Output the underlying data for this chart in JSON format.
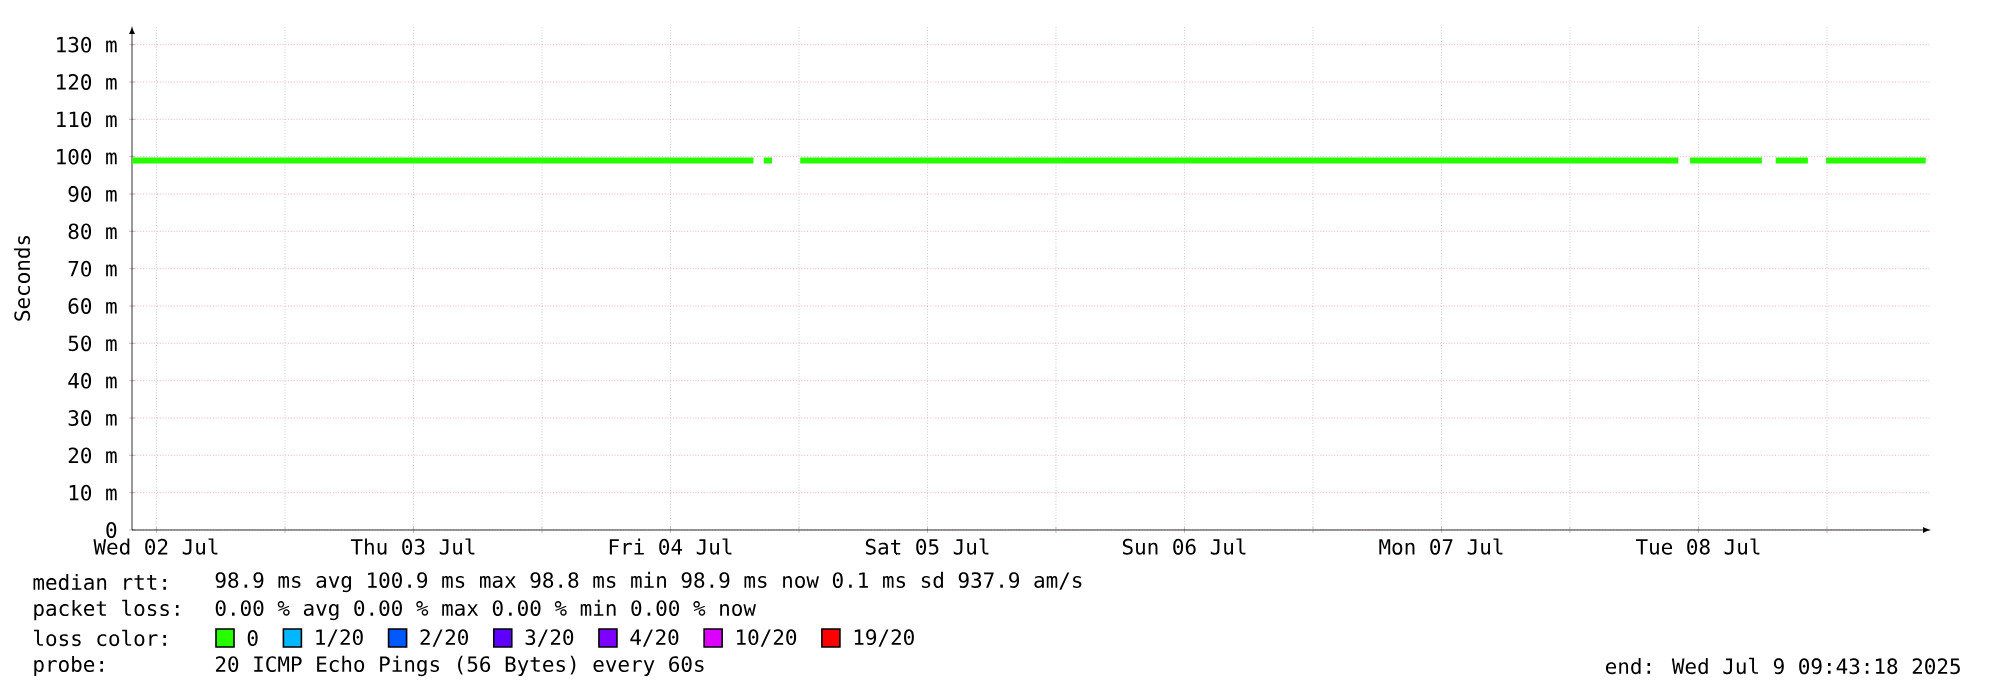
{
  "chart_data": {
    "type": "line",
    "ylabel": "Seconds",
    "legend_title": "loss color:",
    "legend": "bottom",
    "grid": true,
    "xlim": [
      "2025-07-02T09:43",
      "2025-07-09T09:43"
    ],
    "xticks": [
      {
        "value": "2025-07-02T12:00",
        "label": "Wed 02 Jul"
      },
      {
        "value": "2025-07-03T00:00",
        "label": null
      },
      {
        "value": "2025-07-03T12:00",
        "label": "Thu 03 Jul"
      },
      {
        "value": "2025-07-04T00:00",
        "label": null
      },
      {
        "value": "2025-07-04T12:00",
        "label": "Fri 04 Jul"
      },
      {
        "value": "2025-07-05T00:00",
        "label": null
      },
      {
        "value": "2025-07-05T12:00",
        "label": "Sat 05 Jul"
      },
      {
        "value": "2025-07-06T00:00",
        "label": null
      },
      {
        "value": "2025-07-06T12:00",
        "label": "Sun 06 Jul"
      },
      {
        "value": "2025-07-07T00:00",
        "label": null
      },
      {
        "value": "2025-07-07T12:00",
        "label": "Mon 07 Jul"
      },
      {
        "value": "2025-07-08T00:00",
        "label": null
      },
      {
        "value": "2025-07-08T12:00",
        "label": "Tue 08 Jul"
      },
      {
        "value": "2025-07-09T00:00",
        "label": null
      }
    ],
    "ylim": [
      0,
      135
    ],
    "yticks": [
      {
        "value": 0,
        "label": "0"
      },
      {
        "value": 10,
        "label": "10 m"
      },
      {
        "value": 20,
        "label": "20 m"
      },
      {
        "value": 30,
        "label": "30 m"
      },
      {
        "value": 40,
        "label": "40 m"
      },
      {
        "value": 50,
        "label": "50 m"
      },
      {
        "value": 60,
        "label": "60 m"
      },
      {
        "value": 70,
        "label": "70 m"
      },
      {
        "value": 80,
        "label": "80 m"
      },
      {
        "value": 90,
        "label": "90 m"
      },
      {
        "value": 100,
        "label": "100 m"
      },
      {
        "value": 110,
        "label": "110 m"
      },
      {
        "value": 120,
        "label": "120 m"
      },
      {
        "value": 130,
        "label": "130 m"
      }
    ],
    "x": [
      "2025-07-02T09:43",
      "2025-07-03T12:00",
      "2025-07-04T12:00",
      "2025-07-04T19:45",
      "2025-07-04T20:00",
      "2025-07-04T20:43",
      "2025-07-04T21:29",
      "2025-07-04T22:00",
      "2025-07-05T00:07",
      "2025-07-06T12:00",
      "2025-07-07T12:00",
      "2025-07-08T10:07",
      "2025-07-08T10:40",
      "2025-07-08T11:13",
      "2025-07-08T17:55",
      "2025-07-08T18:30",
      "2025-07-08T19:13",
      "2025-07-08T22:13",
      "2025-07-08T22:40",
      "2025-07-08T23:55",
      "2025-07-09T09:13"
    ],
    "series": [
      {
        "name": "0",
        "color": "#26ff00",
        "values": [
          99,
          99,
          99,
          99,
          null,
          99,
          99,
          null,
          99,
          99,
          99,
          99,
          null,
          99,
          99,
          null,
          99,
          99,
          null,
          99,
          99
        ]
      },
      {
        "name": "1/20",
        "color": "#00b8ff",
        "values": [
          null,
          null,
          null,
          null,
          null,
          null,
          null,
          null,
          null,
          null,
          null,
          null,
          null,
          null,
          null,
          null,
          null,
          null,
          null,
          null,
          null
        ]
      },
      {
        "name": "2/20",
        "color": "#0059ff",
        "values": [
          null,
          null,
          null,
          null,
          null,
          null,
          null,
          null,
          null,
          null,
          null,
          null,
          null,
          null,
          null,
          null,
          null,
          null,
          null,
          null,
          null
        ]
      },
      {
        "name": "3/20",
        "color": "#5e00ff",
        "values": [
          null,
          null,
          null,
          null,
          null,
          null,
          null,
          null,
          null,
          null,
          null,
          null,
          null,
          null,
          null,
          null,
          null,
          null,
          null,
          null,
          null
        ]
      },
      {
        "name": "4/20",
        "color": "#7e00ff",
        "values": [
          null,
          null,
          null,
          null,
          null,
          null,
          null,
          null,
          null,
          null,
          null,
          null,
          null,
          null,
          null,
          null,
          null,
          null,
          null,
          null,
          null
        ]
      },
      {
        "name": "10/20",
        "color": "#dd00ff",
        "values": [
          null,
          null,
          null,
          null,
          null,
          null,
          null,
          null,
          null,
          null,
          null,
          null,
          null,
          null,
          null,
          null,
          null,
          null,
          null,
          null,
          null
        ]
      },
      {
        "name": "19/20",
        "color": "#ff0000",
        "values": [
          null,
          null,
          null,
          null,
          null,
          null,
          null,
          null,
          null,
          null,
          null,
          null,
          null,
          null,
          null,
          null,
          null,
          null,
          null,
          null,
          null
        ]
      }
    ],
    "annotations": [
      "median rtt:",
      "98.9 ms avg  100.9 ms max  98.8 ms min  98.9 ms now  0.1 ms sd  937.9   am/s",
      "packet loss:",
      "0.00 % avg  0.00 % max  0.00 % min  0.00 % now",
      "probe:",
      "20 ICMP Echo Pings (56 Bytes) every 60s",
      "end: Wed Jul  9 09:43:18 2025"
    ]
  }
}
